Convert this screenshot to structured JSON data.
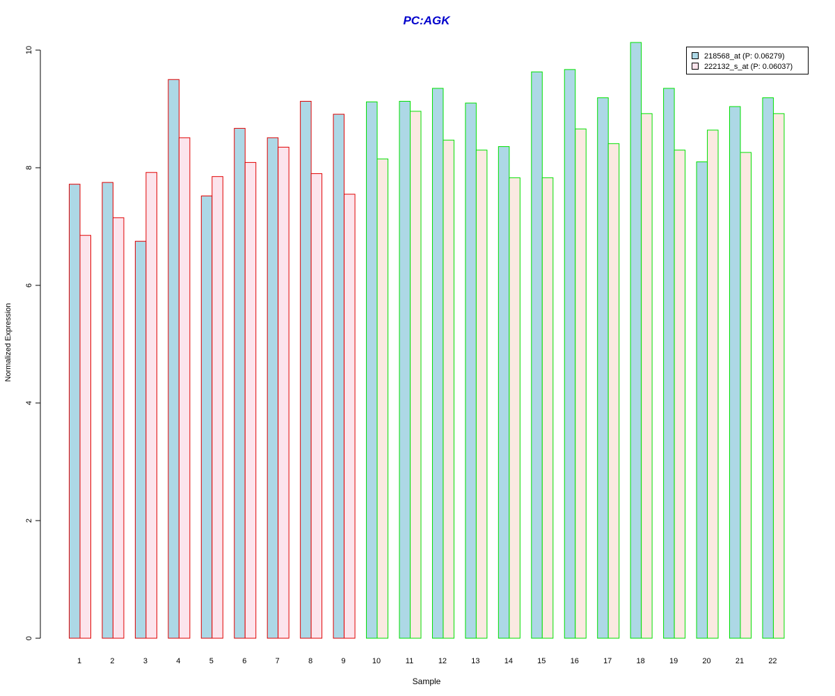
{
  "chart_data": {
    "type": "bar",
    "title": "PC:AGK",
    "xlabel": "Sample",
    "ylabel": "Normalized Expression",
    "ylim": [
      0,
      10
    ],
    "yticks": [
      "0",
      "2",
      "4",
      "6",
      "8",
      "10"
    ],
    "categories": [
      "1",
      "2",
      "3",
      "4",
      "5",
      "6",
      "7",
      "8",
      "9",
      "10",
      "11",
      "12",
      "13",
      "14",
      "15",
      "16",
      "17",
      "18",
      "19",
      "20",
      "21",
      "22"
    ],
    "series": [
      {
        "name": "218568_at (P: 0.06279)",
        "fill": "#add8e6",
        "values": [
          7.72,
          7.75,
          6.75,
          9.5,
          7.52,
          8.67,
          8.51,
          9.13,
          8.91,
          9.12,
          9.13,
          9.35,
          9.1,
          8.36,
          9.63,
          9.67,
          9.19,
          10.13,
          9.35,
          8.1,
          9.04,
          9.19
        ]
      },
      {
        "name": "222132_s_at (P: 0.06037)",
        "fill": "#fce4ec",
        "fill_green_group": "#fbe9e1",
        "values": [
          6.85,
          7.15,
          7.92,
          8.51,
          7.85,
          8.09,
          8.35,
          7.9,
          7.55,
          8.15,
          8.96,
          8.47,
          8.3,
          7.83,
          7.83,
          8.66,
          8.41,
          8.92,
          8.3,
          8.64,
          8.26,
          8.92
        ]
      }
    ],
    "group_border_colors": [
      "#e00000",
      "#e00000",
      "#e00000",
      "#e00000",
      "#e00000",
      "#e00000",
      "#e00000",
      "#e00000",
      "#e00000",
      "#00e000",
      "#00e000",
      "#00e000",
      "#00e000",
      "#00e000",
      "#00e000",
      "#00e000",
      "#00e000",
      "#00e000",
      "#00e000",
      "#00e000",
      "#00e000",
      "#00e000"
    ],
    "legend": {
      "position": "top-right"
    },
    "grid": false
  }
}
